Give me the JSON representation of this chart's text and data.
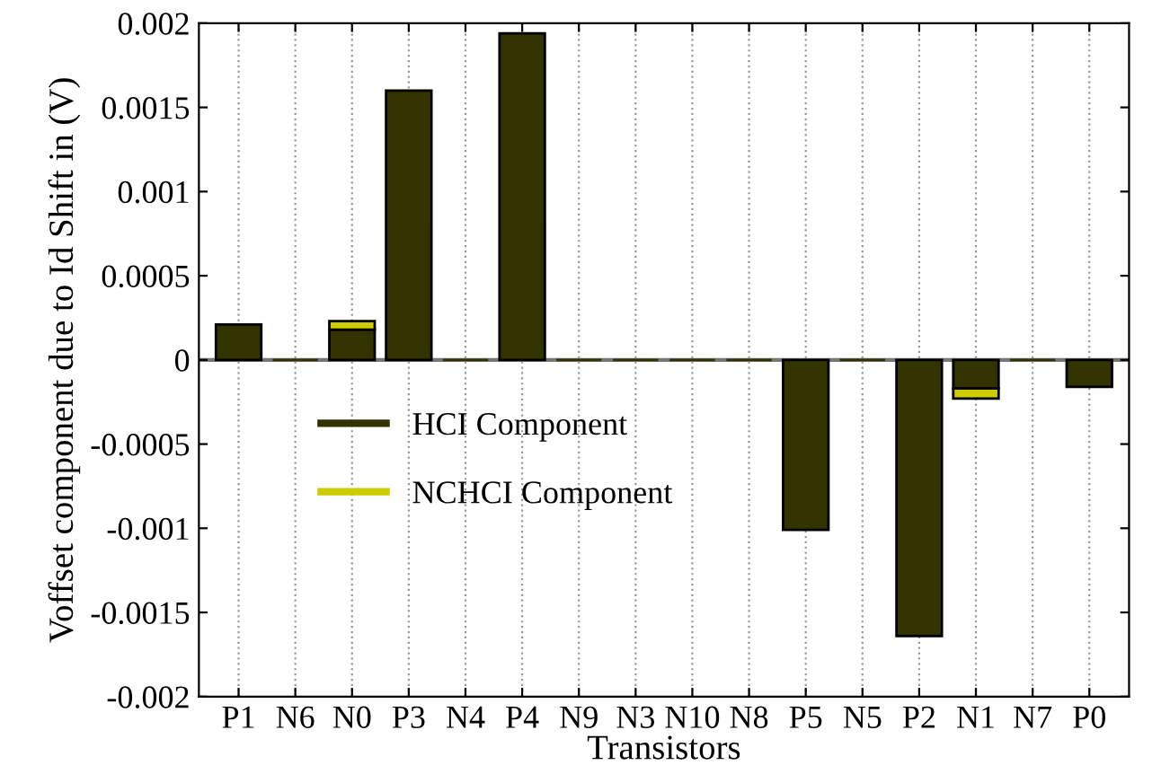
{
  "chart_data": {
    "type": "bar",
    "stacked": true,
    "xlabel": "Transistors",
    "ylabel": "Voffset component due to Id Shift in (V)",
    "categories": [
      "P1",
      "N6",
      "N0",
      "P3",
      "N4",
      "P4",
      "N9",
      "N3",
      "N10",
      "N8",
      "P5",
      "N5",
      "P2",
      "N1",
      "N7",
      "P0"
    ],
    "series": [
      {
        "name": "HCI Component",
        "color": "#333300",
        "values": [
          0.00021,
          0,
          0.00018,
          0.0016,
          0,
          0.00194,
          0,
          0,
          0,
          0,
          -0.00101,
          0,
          -0.00164,
          -0.00017,
          0,
          -0.00016
        ]
      },
      {
        "name": "NCHCI Component",
        "color": "#cccc00",
        "values": [
          null,
          null,
          5e-05,
          null,
          null,
          null,
          null,
          null,
          null,
          null,
          null,
          null,
          null,
          -6e-05,
          null,
          null
        ]
      }
    ],
    "ylim": [
      -0.002,
      0.002
    ],
    "yticks": [
      -0.002,
      -0.0015,
      -0.001,
      -0.0005,
      0,
      0.0005,
      0.001,
      0.0015,
      0.002
    ],
    "grid": "x",
    "legend": "center left"
  }
}
